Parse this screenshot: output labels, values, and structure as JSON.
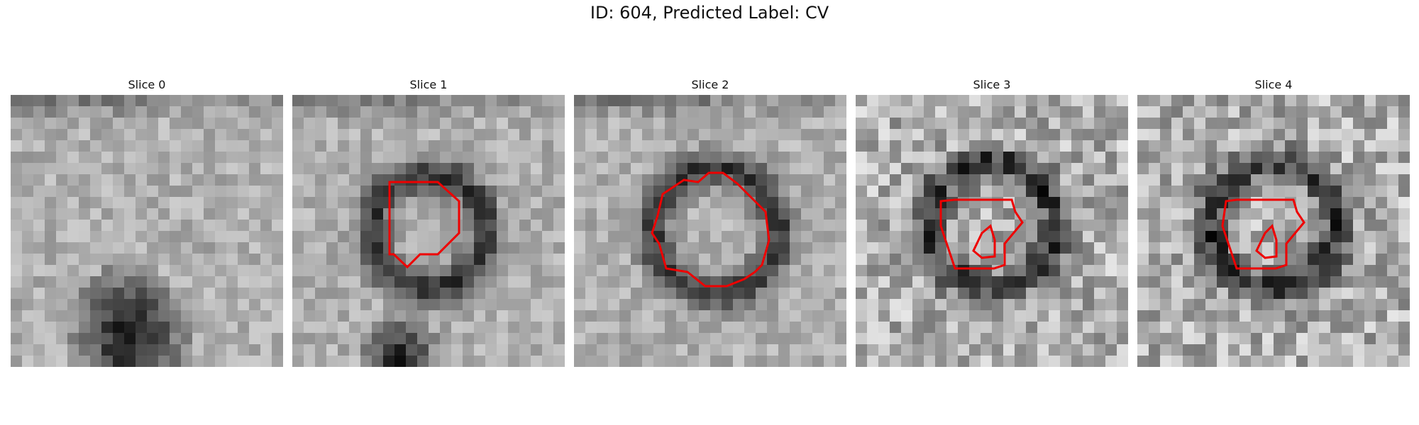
{
  "figure": {
    "title": "ID: 604, Predicted Label: CV"
  },
  "panels": [
    {
      "title": "Slice 0",
      "contour": false
    },
    {
      "title": "Slice 1",
      "contour": true
    },
    {
      "title": "Slice 2",
      "contour": true
    },
    {
      "title": "Slice 3",
      "contour": true
    },
    {
      "title": "Slice 4",
      "contour": true
    }
  ],
  "colors": {
    "contour": "#ee0000",
    "background": "#ffffff"
  }
}
